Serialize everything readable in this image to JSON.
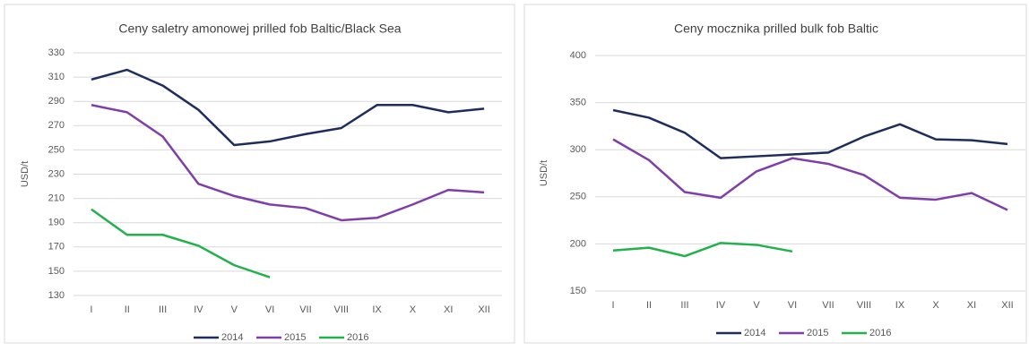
{
  "chart_data": [
    {
      "type": "line",
      "title": "Ceny saletry amonowej prilled fob Baltic/Black Sea",
      "y_label": "USD/t",
      "categories": [
        "I",
        "II",
        "III",
        "IV",
        "V",
        "VI",
        "VII",
        "VIII",
        "IX",
        "X",
        "XI",
        "XII"
      ],
      "series": [
        {
          "name": "2014",
          "color": "#1f2d5c",
          "values": [
            308,
            316,
            303,
            283,
            254,
            257,
            263,
            268,
            287,
            287,
            281,
            284
          ]
        },
        {
          "name": "2015",
          "color": "#7e3fa8",
          "values": [
            287,
            281,
            261,
            222,
            212,
            205,
            202,
            192,
            194,
            205,
            217,
            215
          ]
        },
        {
          "name": "2016",
          "color": "#22b14c",
          "values": [
            201,
            180,
            180,
            171,
            155,
            145,
            null,
            null,
            null,
            null,
            null,
            null
          ]
        }
      ],
      "ylim": [
        130,
        330
      ],
      "yticks": [
        130,
        150,
        170,
        190,
        210,
        230,
        250,
        270,
        290,
        310,
        330
      ],
      "grid": true
    },
    {
      "type": "line",
      "title": "Ceny mocznika prilled bulk fob Baltic",
      "y_label": "USD/t",
      "categories": [
        "I",
        "II",
        "III",
        "IV",
        "V",
        "VI",
        "VII",
        "VIII",
        "IX",
        "X",
        "XI",
        "XII"
      ],
      "series": [
        {
          "name": "2014",
          "color": "#1f2d5c",
          "values": [
            342,
            334,
            318,
            291,
            293,
            295,
            297,
            314,
            327,
            311,
            310,
            306
          ]
        },
        {
          "name": "2015",
          "color": "#7e3fa8",
          "values": [
            311,
            289,
            255,
            249,
            277,
            291,
            285,
            273,
            249,
            247,
            254,
            236
          ]
        },
        {
          "name": "2016",
          "color": "#22b14c",
          "values": [
            193,
            196,
            187,
            201,
            199,
            192,
            null,
            null,
            null,
            null,
            null,
            null
          ]
        }
      ],
      "ylim": [
        150,
        400
      ],
      "yticks": [
        150,
        200,
        250,
        300,
        350,
        400
      ],
      "grid": true
    }
  ]
}
